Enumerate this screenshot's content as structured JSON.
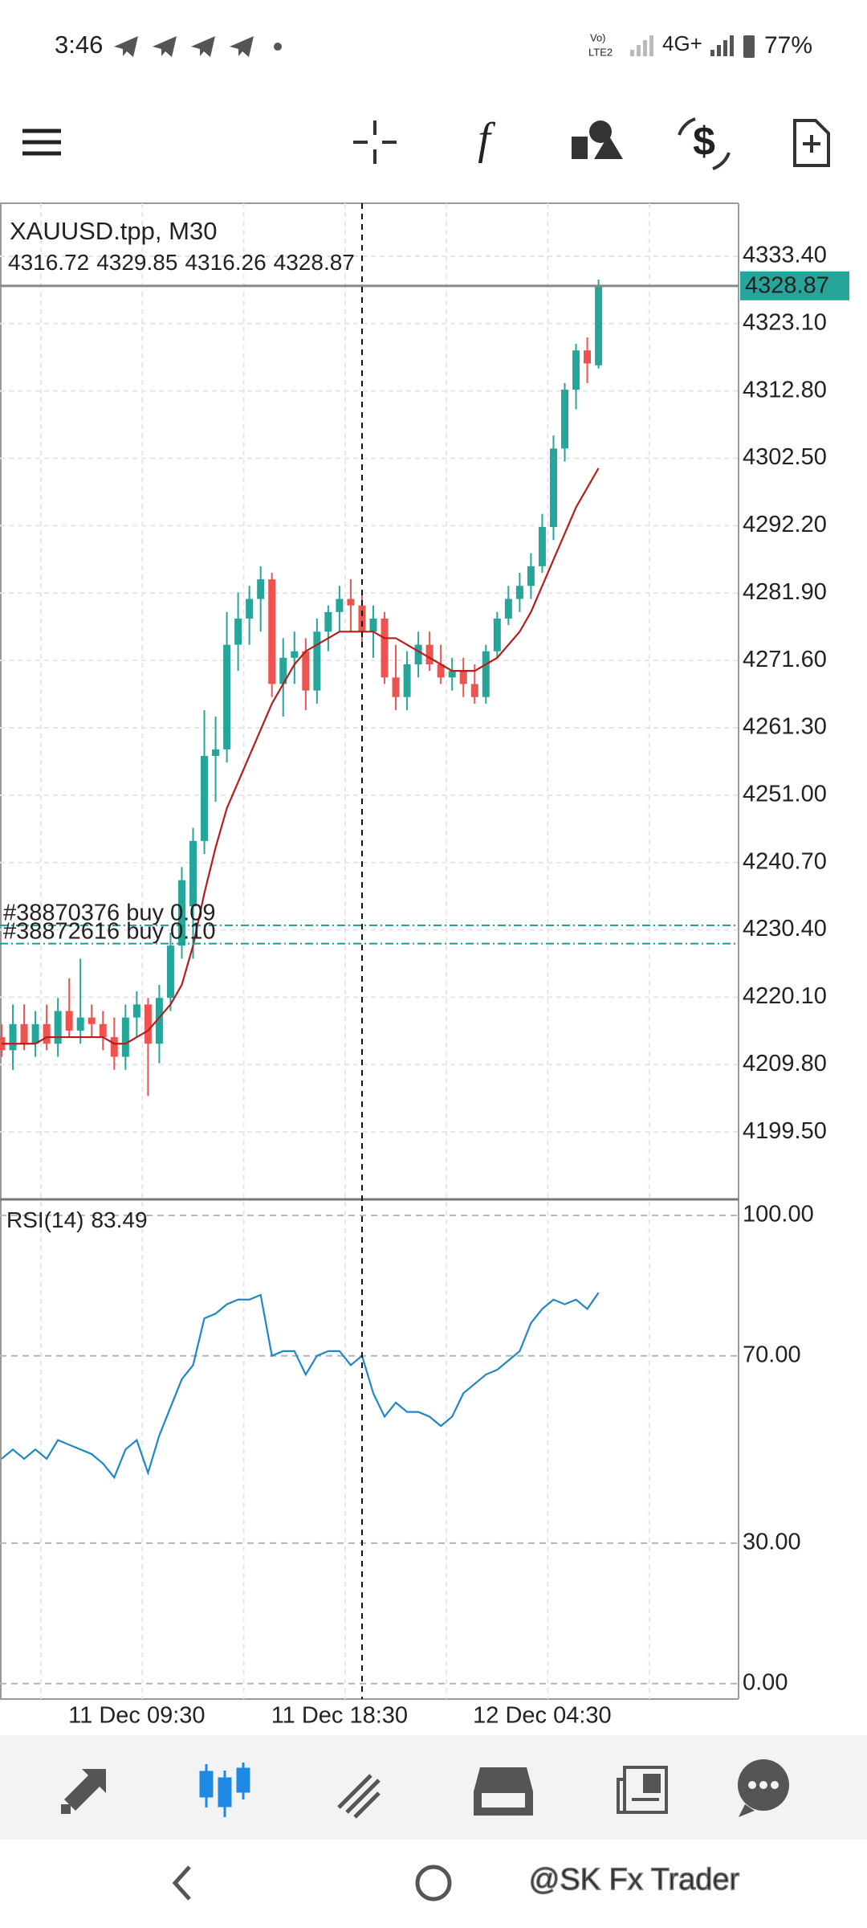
{
  "status_bar": {
    "time": "3:46",
    "volte": "LTE2",
    "network": "4G+",
    "battery": "77%"
  },
  "toolbar": {
    "function_icon": "f"
  },
  "chart_data": [
    {
      "type": "candlestick",
      "title": "XAUUSD.tpp, M30",
      "categories": [
        null,
        null,
        null,
        null,
        null,
        null,
        null,
        null,
        null,
        null,
        null,
        null,
        "11 Dec 09:30",
        null,
        null,
        null,
        null,
        null,
        null,
        null,
        null,
        null,
        null,
        null,
        null,
        null,
        null,
        null,
        null,
        null,
        "11 Dec 18:30",
        null,
        null,
        null,
        null,
        null,
        null,
        null,
        null,
        null,
        null,
        null,
        null,
        null,
        null,
        null,
        null,
        null,
        "12 Dec 04:30",
        null,
        null,
        null,
        null,
        null
      ],
      "open": [
        4214,
        4212,
        4216,
        4213,
        4216,
        4213,
        4218,
        4215,
        4217,
        4216,
        4214,
        4211,
        4217,
        4219,
        4213,
        4220,
        4228,
        4234,
        4244,
        4257,
        4258,
        4274,
        4278,
        4281,
        4284,
        4268,
        4272,
        4273,
        4267,
        4276,
        4279,
        4281,
        4280,
        4276,
        4278,
        4269,
        4266,
        4271,
        4274,
        4271,
        4269,
        4270,
        4268,
        4266,
        4273,
        4278,
        4281,
        4283,
        4286,
        4292,
        4304,
        4313,
        4319,
        4316.72
      ],
      "high": [
        4216,
        4219,
        4219,
        4218,
        4219,
        4220,
        4223,
        4226,
        4219,
        4218,
        4217,
        4219,
        4221,
        4220,
        4222,
        4230,
        4240,
        4246,
        4264,
        4263,
        4279,
        4282,
        4283,
        4286,
        4285,
        4275,
        4276,
        4275,
        4278,
        4280,
        4283,
        4284,
        4282,
        4280,
        4279,
        4274,
        4273,
        4276,
        4276,
        4274,
        4272,
        4272,
        4271,
        4274,
        4279,
        4283,
        4285,
        4288,
        4294,
        4306,
        4314,
        4320,
        4321,
        4329.85
      ],
      "low": [
        4211,
        4209,
        4212,
        4211,
        4212,
        4211,
        4214,
        4213,
        4214,
        4212,
        4209,
        4209,
        4214,
        4205,
        4210,
        4218,
        4226,
        4226,
        4242,
        4250,
        4256,
        4270,
        4274,
        4276,
        4266,
        4263,
        4268,
        4264,
        4265,
        4273,
        4276,
        4276,
        4274,
        4272,
        4268,
        4264,
        4264,
        4269,
        4270,
        4268,
        4267,
        4266,
        4265,
        4265,
        4272,
        4277,
        4279,
        4281,
        4285,
        4290,
        4302,
        4310,
        4314,
        4316.26
      ],
      "close": [
        4212,
        4216,
        4213,
        4216,
        4213,
        4218,
        4215,
        4217,
        4216,
        4214,
        4211,
        4217,
        4219,
        4213,
        4220,
        4228,
        4238,
        4244,
        4257,
        4258,
        4274,
        4278,
        4281,
        4284,
        4268,
        4272,
        4273,
        4267,
        4276,
        4279,
        4281,
        4280,
        4276,
        4278,
        4269,
        4266,
        4271,
        4274,
        4271,
        4269,
        4270,
        4268,
        4266,
        4273,
        4278,
        4281,
        4283,
        4286,
        4292,
        4304,
        4313,
        4319,
        4317,
        4328.87
      ],
      "ma_values": [
        4213,
        4213,
        4213,
        4213,
        4214,
        4214,
        4214,
        4214,
        4214,
        4214,
        4213,
        4213,
        4214,
        4215,
        4217,
        4219,
        4222,
        4228,
        4236,
        4243,
        4249,
        4253,
        4257,
        4261,
        4265,
        4268,
        4271,
        4273,
        4274,
        4275,
        4276,
        4276,
        4276,
        4276,
        4275,
        4275,
        4274,
        4273,
        4272,
        4271,
        4270,
        4270,
        4270,
        4271,
        4272,
        4274,
        4276,
        4279,
        4283,
        4287,
        4291,
        4295,
        4298,
        4301
      ],
      "up_color": "#26a69a",
      "down_color": "#ef5350",
      "ma_color": "#b71c1c",
      "ylim": [
        4189.2,
        4341.5
      ],
      "yticks": [
        {
          "value": 4333.4,
          "label": "4333.40"
        },
        {
          "value": 4323.1,
          "label": "4323.10"
        },
        {
          "value": 4312.8,
          "label": "4312.80"
        },
        {
          "value": 4302.5,
          "label": "4302.50"
        },
        {
          "value": 4292.2,
          "label": "4292.20"
        },
        {
          "value": 4281.9,
          "label": "4281.90"
        },
        {
          "value": 4271.6,
          "label": "4271.60"
        },
        {
          "value": 4261.3,
          "label": "4261.30"
        },
        {
          "value": 4251,
          "label": "4251.00"
        },
        {
          "value": 4240.7,
          "label": "4240.70"
        },
        {
          "value": 4230.4,
          "label": "4230.40"
        },
        {
          "value": 4220.1,
          "label": "4220.10"
        },
        {
          "value": 4209.8,
          "label": "4209.80"
        },
        {
          "value": 4199.5,
          "label": "4199.50"
        }
      ],
      "grid": true,
      "annotations": [
        {
          "text": "#38870376 buy 0.09",
          "value": 4231.1
        },
        {
          "text": "#38872616 buy 0.10",
          "value": 4228.3
        }
      ]
    },
    {
      "type": "line",
      "title": "RSI(14)",
      "values": [
        48,
        50,
        48,
        50,
        48,
        52,
        51,
        50,
        49,
        47,
        44,
        50,
        52,
        45,
        53,
        59,
        65,
        68,
        78,
        79,
        81,
        82,
        82,
        83,
        70,
        71,
        71,
        66,
        70,
        71,
        71,
        68,
        70,
        62,
        57,
        60,
        58,
        58,
        57,
        55,
        57,
        62,
        64,
        66,
        67,
        69,
        71,
        77,
        80,
        82,
        81,
        82,
        80,
        83.49
      ],
      "color": "#1e88c7",
      "ylim": [
        -3.3,
        103.4
      ],
      "yticks": [
        {
          "value": 100,
          "label": "100.00"
        },
        {
          "value": 70,
          "label": "70.00"
        },
        {
          "value": 30,
          "label": "30.00"
        },
        {
          "value": 0,
          "label": "0.00"
        }
      ],
      "grid": true
    }
  ],
  "watermark": "@SK Fx Trader"
}
